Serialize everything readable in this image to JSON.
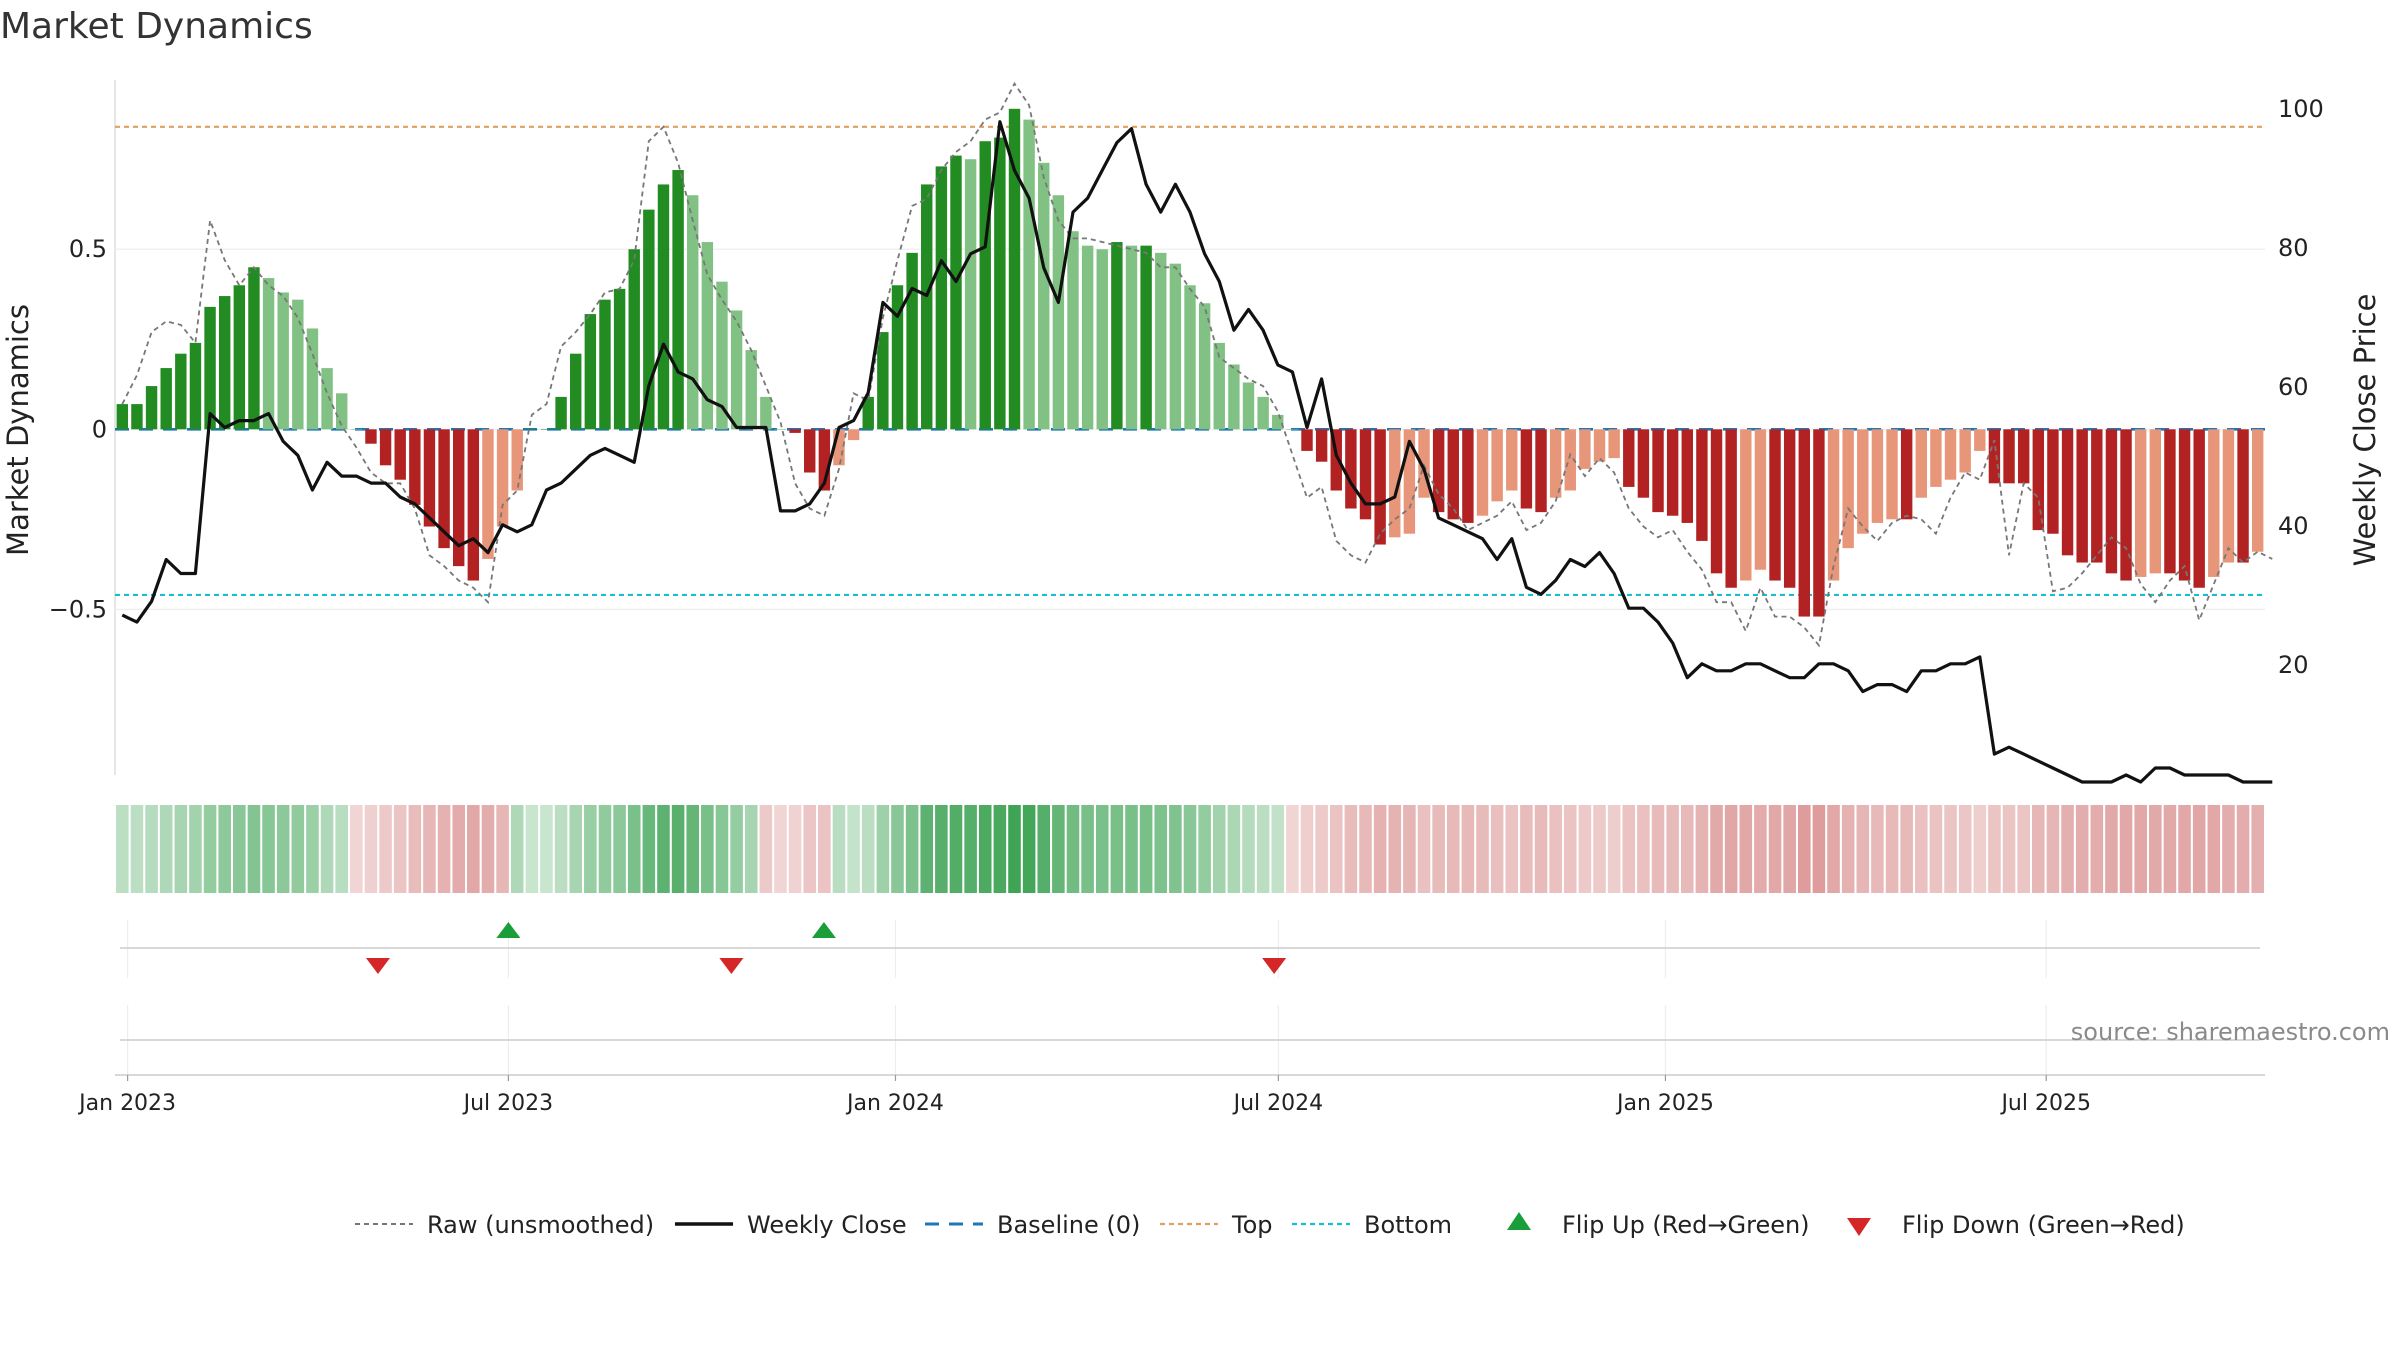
{
  "chart_data": {
    "type": "bar",
    "title": "Market Dynamics",
    "ylabel_left": "Market Dynamics",
    "ylabel_right": "Weekly Close Price",
    "ylim_left": [
      -0.96,
      0.97
    ],
    "ylim_right": [
      4,
      104
    ],
    "yticks_left": [
      {
        "value": 0.5,
        "label": "0.5"
      },
      {
        "value": 0,
        "label": "0"
      },
      {
        "value": -0.5,
        "label": "−0.5"
      }
    ],
    "yticks_right": [
      {
        "value": 100,
        "label": "100"
      },
      {
        "value": 80,
        "label": "80"
      },
      {
        "value": 60,
        "label": "60"
      },
      {
        "value": 40,
        "label": "40"
      },
      {
        "value": 20,
        "label": "20"
      }
    ],
    "x_start": "2022-12-26",
    "x_end": "2025-10-13",
    "x_ticks": [
      {
        "date": "2023-01-01",
        "label": "Jan 2023"
      },
      {
        "date": "2023-07-01",
        "label": "Jul 2023"
      },
      {
        "date": "2024-01-01",
        "label": "Jan 2024"
      },
      {
        "date": "2024-07-01",
        "label": "Jul 2024"
      },
      {
        "date": "2025-01-01",
        "label": "Jan 2025"
      },
      {
        "date": "2025-07-01",
        "label": "Jul 2025"
      }
    ],
    "reference_lines": {
      "baseline": 0,
      "top": 0.84,
      "bottom": -0.46
    },
    "smoothed": [
      0.07,
      0.07,
      0.12,
      0.17,
      0.21,
      0.24,
      0.34,
      0.37,
      0.4,
      0.45,
      0.42,
      0.38,
      0.36,
      0.28,
      0.17,
      0.1,
      0,
      -0.04,
      -0.1,
      -0.14,
      -0.21,
      -0.27,
      -0.33,
      -0.38,
      -0.42,
      -0.36,
      -0.27,
      -0.17,
      0,
      0,
      0.09,
      0.21,
      0.32,
      0.36,
      0.39,
      0.5,
      0.61,
      0.68,
      0.72,
      0.65,
      0.52,
      0.41,
      0.33,
      0.22,
      0.09,
      0,
      -0.01,
      -0.12,
      -0.17,
      -0.1,
      -0.03,
      0.09,
      0.27,
      0.4,
      0.49,
      0.68,
      0.73,
      0.76,
      0.75,
      0.8,
      0.81,
      0.89,
      0.86,
      0.74,
      0.65,
      0.55,
      0.51,
      0.5,
      0.52,
      0.51,
      0.51,
      0.49,
      0.46,
      0.4,
      0.35,
      0.24,
      0.18,
      0.13,
      0.09,
      0.04,
      0,
      -0.06,
      -0.09,
      -0.17,
      -0.22,
      -0.25,
      -0.32,
      -0.3,
      -0.29,
      -0.19,
      -0.23,
      -0.25,
      -0.26,
      -0.24,
      -0.2,
      -0.17,
      -0.22,
      -0.23,
      -0.19,
      -0.17,
      -0.11,
      -0.09,
      -0.08,
      -0.16,
      -0.19,
      -0.23,
      -0.24,
      -0.26,
      -0.31,
      -0.4,
      -0.44,
      -0.42,
      -0.39,
      -0.42,
      -0.44,
      -0.52,
      -0.52,
      -0.42,
      -0.33,
      -0.29,
      -0.26,
      -0.25,
      -0.25,
      -0.19,
      -0.16,
      -0.14,
      -0.12,
      -0.06,
      -0.15,
      -0.15,
      -0.15,
      -0.28,
      -0.29,
      -0.35,
      -0.37,
      -0.37,
      -0.4,
      -0.42,
      -0.41,
      -0.4,
      -0.4,
      -0.42,
      -0.44,
      -0.41,
      -0.37,
      -0.37,
      -0.34
    ],
    "raw": [
      0.07,
      0.15,
      0.27,
      0.3,
      0.29,
      0.24,
      0.58,
      0.47,
      0.4,
      0.45,
      0.4,
      0.37,
      0.31,
      0.21,
      0.1,
      0.01,
      -0.05,
      -0.12,
      -0.15,
      -0.15,
      -0.22,
      -0.35,
      -0.38,
      -0.42,
      -0.44,
      -0.48,
      -0.21,
      -0.17,
      0.04,
      0.07,
      0.23,
      0.27,
      0.32,
      0.38,
      0.39,
      0.47,
      0.8,
      0.84,
      0.74,
      0.58,
      0.43,
      0.36,
      0.3,
      0.22,
      0.12,
      0.02,
      -0.15,
      -0.22,
      -0.24,
      -0.11,
      0.1,
      0.08,
      0.31,
      0.47,
      0.62,
      0.64,
      0.72,
      0.77,
      0.8,
      0.86,
      0.88,
      0.96,
      0.9,
      0.7,
      0.58,
      0.53,
      0.53,
      0.52,
      0.51,
      0.5,
      0.49,
      0.45,
      0.45,
      0.39,
      0.34,
      0.2,
      0.17,
      0.14,
      0.12,
      0.05,
      -0.07,
      -0.19,
      -0.16,
      -0.31,
      -0.35,
      -0.37,
      -0.29,
      -0.25,
      -0.22,
      -0.1,
      -0.18,
      -0.22,
      -0.28,
      -0.26,
      -0.24,
      -0.2,
      -0.28,
      -0.26,
      -0.2,
      -0.07,
      -0.13,
      -0.08,
      -0.12,
      -0.22,
      -0.27,
      -0.3,
      -0.28,
      -0.34,
      -0.39,
      -0.48,
      -0.48,
      -0.56,
      -0.44,
      -0.52,
      -0.52,
      -0.55,
      -0.6,
      -0.38,
      -0.22,
      -0.27,
      -0.31,
      -0.26,
      -0.24,
      -0.25,
      -0.29,
      -0.19,
      -0.12,
      -0.14,
      -0.03,
      -0.35,
      -0.15,
      -0.19,
      -0.45,
      -0.44,
      -0.4,
      -0.35,
      -0.3,
      -0.33,
      -0.43,
      -0.48,
      -0.42,
      -0.38,
      -0.53,
      -0.43,
      -0.33,
      -0.37,
      -0.34,
      -0.36
    ],
    "close": [
      27,
      26,
      29,
      35,
      33,
      33,
      56,
      54,
      55,
      55,
      56,
      52,
      50,
      45,
      49,
      47,
      47,
      46,
      46,
      44,
      43,
      41,
      39,
      37,
      38,
      36,
      40,
      39,
      40,
      45,
      46,
      48,
      50,
      51,
      50,
      49,
      60,
      66,
      62,
      61,
      58,
      57,
      54,
      54,
      54,
      42,
      42,
      43,
      46,
      54,
      55,
      59,
      72,
      70,
      74,
      73,
      78,
      75,
      79,
      80,
      98,
      91,
      87,
      77,
      72,
      85,
      87,
      91,
      95,
      97,
      89,
      85,
      89,
      85,
      79,
      75,
      68,
      71,
      68,
      63,
      62,
      54,
      61,
      50,
      46,
      43,
      43,
      44,
      52,
      48,
      41,
      40,
      39,
      38,
      35,
      38,
      31,
      30,
      32,
      35,
      34,
      36,
      33,
      28,
      28,
      26,
      23,
      18,
      20,
      19,
      19,
      20,
      20,
      19,
      18,
      18,
      20,
      20,
      19,
      16,
      17,
      17,
      16,
      19,
      19,
      20,
      20,
      21,
      7,
      8,
      7,
      6,
      5,
      4,
      3,
      3,
      3,
      4,
      3,
      5,
      5,
      4,
      4,
      4,
      4,
      3,
      3,
      3
    ],
    "ribbon": {
      "green_intensity": [
        0.2,
        0.2,
        0.25,
        0.3,
        0.35,
        0.45,
        0.55,
        0.55,
        0.6,
        0.65,
        0.6,
        0.55,
        0.5,
        0.4,
        0.3,
        0.25
      ],
      "segments": [
        {
          "start": 0,
          "end": 16,
          "color": "green"
        },
        {
          "start": 16,
          "end": 27,
          "color": "red"
        },
        {
          "start": 27,
          "end": 44,
          "color": "green"
        },
        {
          "start": 44,
          "end": 49,
          "color": "red"
        },
        {
          "start": 49,
          "end": 80,
          "color": "green"
        },
        {
          "start": 80,
          "end": 146,
          "color": "red"
        }
      ]
    },
    "flips": [
      {
        "date": "2023-04-30",
        "type": "down"
      },
      {
        "date": "2023-07-01",
        "type": "up"
      },
      {
        "date": "2023-10-15",
        "type": "down"
      },
      {
        "date": "2023-11-28",
        "type": "up"
      },
      {
        "date": "2024-06-29",
        "type": "down"
      }
    ],
    "colors": {
      "green_strong": "#228B22",
      "green_light": "#82C184",
      "red_strong": "#B22222",
      "red_light": "#E8967A",
      "close_line": "#111111",
      "raw_line": "#777777",
      "baseline": "#1f77b4",
      "top": "#E0A060",
      "bottom": "#17becf",
      "flip_up": "#1a9e3a",
      "flip_down": "#d62728"
    },
    "legend": [
      {
        "label": "Raw (unsmoothed)",
        "style": "raw"
      },
      {
        "label": "Weekly Close",
        "style": "close"
      },
      {
        "label": "Baseline (0)",
        "style": "baseline"
      },
      {
        "label": "Top",
        "style": "top"
      },
      {
        "label": "Bottom",
        "style": "bottom"
      },
      {
        "label": "Flip Up (Red→Green)",
        "style": "flip_up"
      },
      {
        "label": "Flip Down (Green→Red)",
        "style": "flip_down"
      }
    ],
    "source": "source: sharemaestro.com"
  }
}
